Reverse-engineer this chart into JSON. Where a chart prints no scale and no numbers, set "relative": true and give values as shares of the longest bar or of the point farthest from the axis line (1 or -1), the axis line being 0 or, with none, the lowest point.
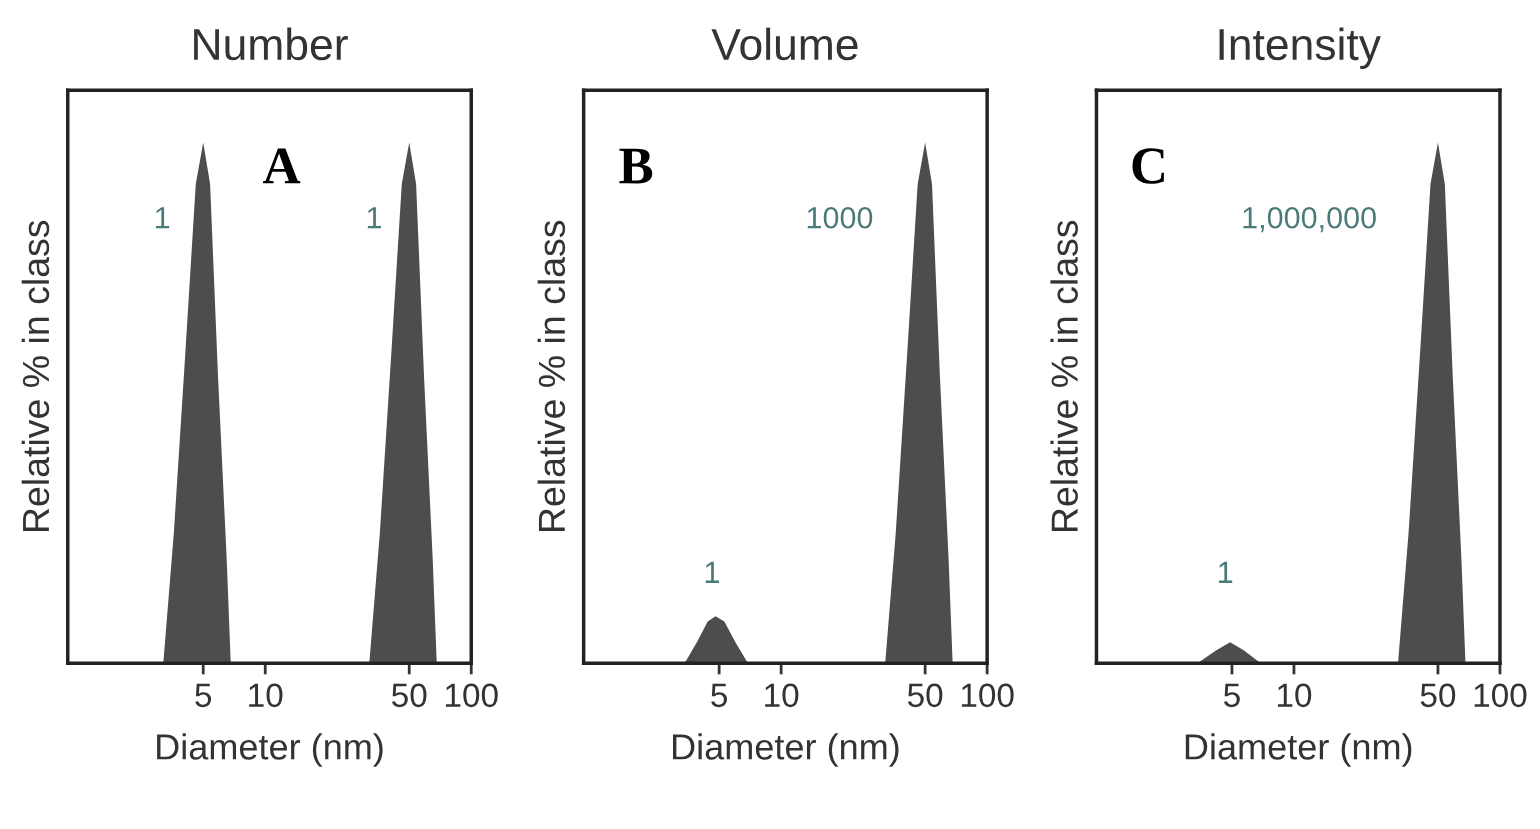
{
  "chart_data": [
    {
      "type": "area",
      "title": "Number",
      "xlabel": "Diameter (nm)",
      "ylabel": "Relative % in class",
      "relative": true,
      "log": "x",
      "xlim": [
        1.1,
        100
      ],
      "xticks": [
        5,
        10,
        50,
        100
      ],
      "grid": false,
      "series": [
        {
          "color": "#4d4d4d",
          "x": [
            3.2,
            3.6,
            4.1,
            4.6,
            5.0,
            5.4,
            5.9,
            6.5,
            6.8
          ],
          "values": [
            0,
            0.25,
            0.6,
            0.92,
            1,
            0.92,
            0.55,
            0.2,
            0
          ]
        },
        {
          "color": "#4d4d4d",
          "x": [
            32,
            36,
            41,
            46,
            50,
            54,
            59,
            65,
            68
          ],
          "values": [
            0,
            0.25,
            0.6,
            0.92,
            1,
            0.92,
            0.55,
            0.2,
            0
          ]
        }
      ],
      "annotations": [
        "A",
        "1",
        "1"
      ]
    },
    {
      "type": "area",
      "title": "Volume",
      "xlabel": "Diameter (nm)",
      "ylabel": "Relative % in class",
      "relative": true,
      "log": "x",
      "xlim": [
        1.1,
        100
      ],
      "xticks": [
        5,
        10,
        50,
        100
      ],
      "grid": false,
      "series": [
        {
          "color": "#4d4d4d",
          "x": [
            3.4,
            3.9,
            4.4,
            4.8,
            5.3,
            6.0,
            6.9
          ],
          "values": [
            0,
            0.04,
            0.08,
            0.09,
            0.08,
            0.04,
            0
          ]
        },
        {
          "color": "#4d4d4d",
          "x": [
            32,
            36,
            41,
            46,
            50,
            54,
            59,
            65,
            68
          ],
          "values": [
            0,
            0.25,
            0.6,
            0.92,
            1,
            0.92,
            0.55,
            0.2,
            0
          ]
        }
      ],
      "annotations": [
        "B",
        "1",
        "1000"
      ]
    },
    {
      "type": "area",
      "title": "Intensity",
      "xlabel": "Diameter (nm)",
      "ylabel": "Relative % in class",
      "relative": true,
      "log": "x",
      "xlim": [
        1.1,
        100
      ],
      "xticks": [
        5,
        10,
        50,
        100
      ],
      "grid": false,
      "series": [
        {
          "color": "#4d4d4d",
          "x": [
            3.4,
            4.2,
            4.9,
            5.7,
            6.9
          ],
          "values": [
            0,
            0.025,
            0.04,
            0.025,
            0
          ]
        },
        {
          "color": "#4d4d4d",
          "x": [
            32,
            36,
            41,
            46,
            50,
            54,
            59,
            65,
            68
          ],
          "values": [
            0,
            0.25,
            0.6,
            0.92,
            1,
            0.92,
            0.55,
            0.2,
            0
          ]
        }
      ],
      "annotations": [
        "C",
        "1",
        "1,000,000"
      ]
    }
  ]
}
